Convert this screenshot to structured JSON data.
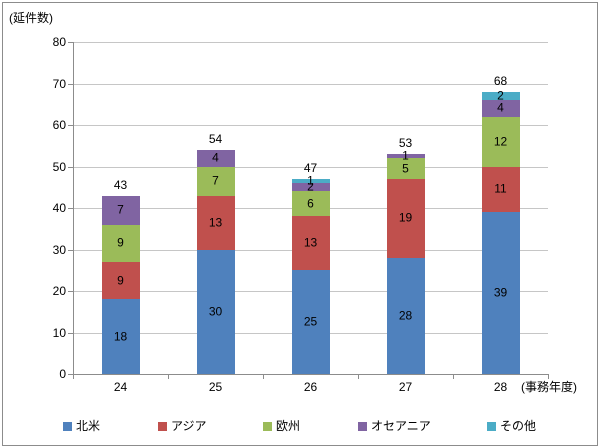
{
  "chart_data": {
    "type": "bar",
    "stacked": true,
    "title": "",
    "categories": [
      "24",
      "25",
      "26",
      "27",
      "28"
    ],
    "series": [
      {
        "name": "北米",
        "color": "#4F81BD",
        "values": [
          18,
          30,
          25,
          28,
          39
        ]
      },
      {
        "name": "アジア",
        "color": "#C0504D",
        "values": [
          9,
          13,
          13,
          19,
          11
        ]
      },
      {
        "name": "欧州",
        "color": "#9BBB59",
        "values": [
          9,
          7,
          6,
          5,
          12
        ]
      },
      {
        "name": "オセアニア",
        "color": "#8064A2",
        "values": [
          7,
          4,
          2,
          1,
          4
        ]
      },
      {
        "name": "その他",
        "color": "#4BACC6",
        "values": [
          0,
          0,
          1,
          0,
          2
        ]
      }
    ],
    "totals": [
      43,
      54,
      47,
      53,
      68
    ],
    "y_axis": {
      "unit_label": "(延件数)",
      "min": 0,
      "max": 80,
      "step": 10,
      "ticks": [
        "0",
        "10",
        "20",
        "30",
        "40",
        "50",
        "60",
        "70",
        "80"
      ]
    },
    "x_axis": {
      "unit_label": "(事務年度)"
    },
    "legend_position": "bottom",
    "grid": true
  },
  "colors": {
    "axis": "#8c8c8c",
    "gridline": "#c6c6c6",
    "text": "#000000",
    "frame_border": "#8c8c8c",
    "background": "#ffffff"
  }
}
